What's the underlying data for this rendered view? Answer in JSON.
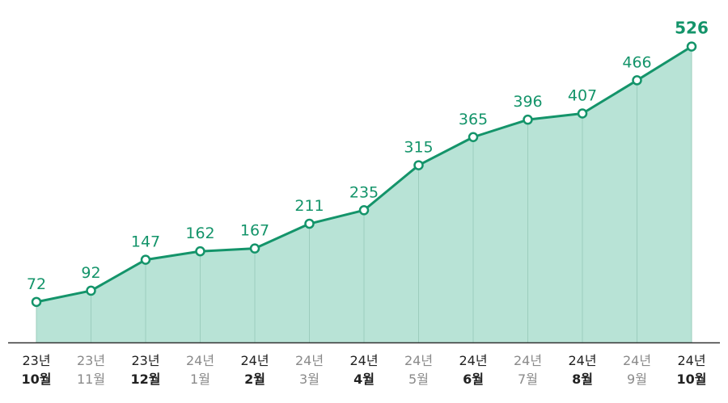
{
  "chart_data": {
    "type": "area",
    "title": "",
    "xlabel": "",
    "ylabel": "",
    "categories": [
      {
        "year": "23년",
        "month": "10월"
      },
      {
        "year": "23년",
        "month": "11월"
      },
      {
        "year": "23년",
        "month": "12월"
      },
      {
        "year": "24년",
        "month": "1월"
      },
      {
        "year": "24년",
        "month": "2월"
      },
      {
        "year": "24년",
        "month": "3월"
      },
      {
        "year": "24년",
        "month": "4월"
      },
      {
        "year": "24년",
        "month": "5월"
      },
      {
        "year": "24년",
        "month": "6월"
      },
      {
        "year": "24년",
        "month": "7월"
      },
      {
        "year": "24년",
        "month": "8월"
      },
      {
        "year": "24년",
        "month": "9월"
      },
      {
        "year": "24년",
        "month": "10월"
      }
    ],
    "values": [
      72,
      92,
      147,
      162,
      167,
      211,
      235,
      315,
      365,
      396,
      407,
      466,
      526
    ],
    "label_emphasis": [
      "bold",
      "light",
      "bold",
      "light",
      "bold",
      "light",
      "bold",
      "light",
      "bold",
      "light",
      "bold",
      "light",
      "bold"
    ],
    "ylim": [
      0,
      580
    ],
    "grid": "vertical drop lines at each point",
    "legend": "none",
    "colors": {
      "line": "#14946a",
      "fill": "#b8e3d6",
      "marker_fill": "#ffffff",
      "drop_line": "#9ccdbd",
      "baseline": "#333333",
      "label_bold": "#222222",
      "label_light": "#8a8a8a"
    }
  }
}
